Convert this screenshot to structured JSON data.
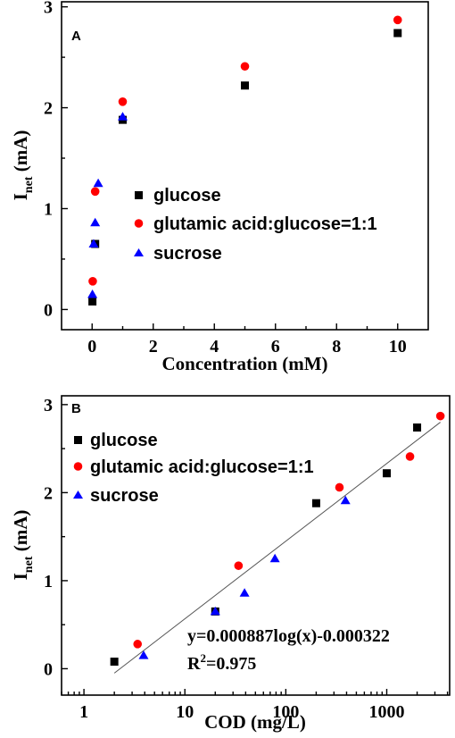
{
  "chart_data": [
    {
      "panel": "A",
      "type": "scatter",
      "xlabel": "Concentration (mM)",
      "ylabel": "I",
      "ylabel_sub": "net",
      "ylabel_unit": " (mA)",
      "xlim": [
        -1,
        11
      ],
      "ylim": [
        -0.2,
        3.05
      ],
      "xticks": [
        0,
        2,
        4,
        6,
        8,
        10
      ],
      "yticks": [
        0,
        1,
        2,
        3
      ],
      "grid": false,
      "legend_placement": "center",
      "series": [
        {
          "name": "glucose",
          "marker": "square",
          "color": "#000000",
          "points": [
            [
              0.01,
              0.08
            ],
            [
              0.1,
              0.65
            ],
            [
              1,
              1.88
            ],
            [
              5,
              2.22
            ],
            [
              10,
              2.74
            ]
          ]
        },
        {
          "name": "glutamic acid:glucose=1:1",
          "marker": "circle",
          "color": "#ff0000",
          "points": [
            [
              0.02,
              0.28
            ],
            [
              0.1,
              1.17
            ],
            [
              1,
              2.06
            ],
            [
              5,
              2.41
            ],
            [
              10,
              2.87
            ]
          ]
        },
        {
          "name": "sucrose",
          "marker": "triangle",
          "color": "#0000ff",
          "points": [
            [
              0.01,
              0.15
            ],
            [
              0.05,
              0.65
            ],
            [
              0.1,
              0.86
            ],
            [
              0.2,
              1.25
            ],
            [
              1,
              1.91
            ]
          ]
        }
      ]
    },
    {
      "panel": "B",
      "type": "scatter",
      "xscale": "log",
      "xlabel": "COD (mg/L)",
      "ylabel": "I",
      "ylabel_sub": "net",
      "ylabel_unit": " (mA)",
      "xlim": [
        0.6,
        4200
      ],
      "ylim": [
        -0.3,
        3.1
      ],
      "xticks": [
        1,
        10,
        100,
        1000
      ],
      "xtick_labels": [
        "1",
        "10",
        "100",
        "1000"
      ],
      "yticks": [
        0,
        1,
        2,
        3
      ],
      "grid": false,
      "legend_placement": "top-left",
      "fit_line": {
        "x": [
          2,
          3400
        ],
        "y": [
          -0.05,
          2.8
        ]
      },
      "annotations": {
        "equation": "y=0.000887log(x)-0.000322",
        "r2_prefix": "R",
        "r2_sup": "2",
        "r2_value": "=0.975"
      },
      "series": [
        {
          "name": "glucose",
          "marker": "square",
          "color": "#000000",
          "points": [
            [
              2,
              0.08
            ],
            [
              20,
              0.65
            ],
            [
              200,
              1.88
            ],
            [
              1000,
              2.22
            ],
            [
              2000,
              2.74
            ]
          ]
        },
        {
          "name": "glutamic acid:glucose=1:1",
          "marker": "circle",
          "color": "#ff0000",
          "points": [
            [
              3.4,
              0.28
            ],
            [
              34,
              1.17
            ],
            [
              340,
              2.06
            ],
            [
              1700,
              2.41
            ],
            [
              3400,
              2.87
            ]
          ]
        },
        {
          "name": "sucrose",
          "marker": "triangle",
          "color": "#0000ff",
          "points": [
            [
              3.9,
              0.15
            ],
            [
              20,
              0.65
            ],
            [
              39,
              0.86
            ],
            [
              78,
              1.25
            ],
            [
              390,
              1.91
            ]
          ]
        }
      ]
    }
  ]
}
